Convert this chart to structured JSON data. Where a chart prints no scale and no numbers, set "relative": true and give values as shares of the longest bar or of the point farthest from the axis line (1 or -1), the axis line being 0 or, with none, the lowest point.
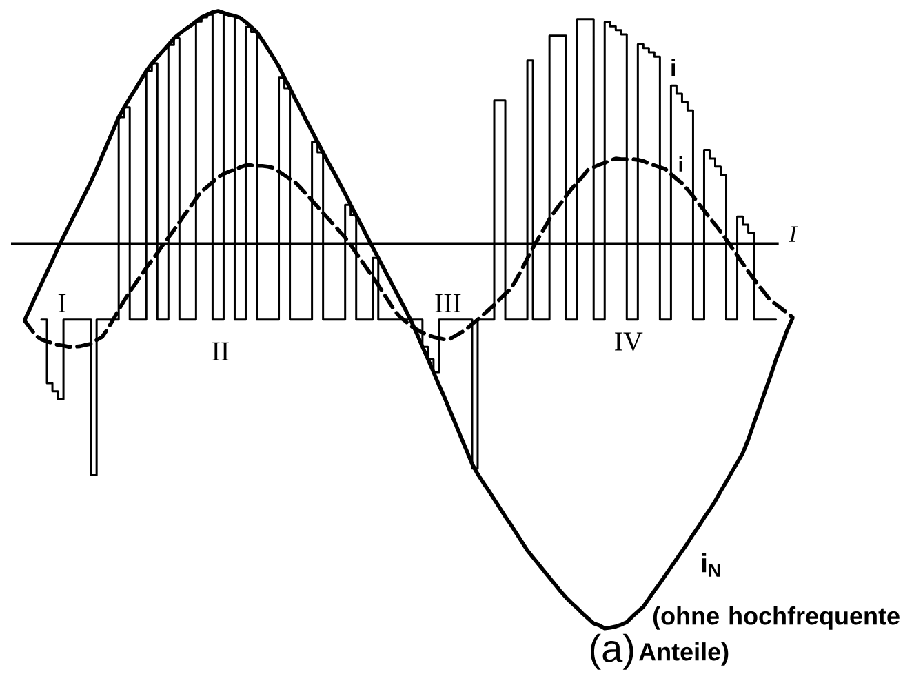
{
  "chart_data": {
    "type": "line",
    "relative": true,
    "marker": "none",
    "categories": [
      null,
      null,
      null,
      null,
      null,
      null,
      null,
      null,
      null,
      null,
      null,
      null,
      null,
      null,
      null,
      null,
      null,
      null,
      null,
      null,
      null,
      null,
      null,
      null,
      null,
      null,
      null,
      null,
      null,
      null,
      null,
      null,
      null,
      null,
      null,
      null,
      null,
      null,
      null,
      null,
      null,
      null,
      null,
      null,
      null,
      null,
      null,
      null,
      null,
      null,
      null,
      null,
      null,
      null,
      null,
      null,
      null,
      null,
      null,
      null,
      null,
      null,
      null,
      null,
      null,
      null,
      null,
      null,
      null,
      null,
      null,
      null,
      null,
      null,
      null,
      null,
      null,
      null,
      null,
      null,
      null,
      null,
      null,
      null,
      null,
      null,
      null,
      null,
      null,
      null,
      null,
      null,
      null,
      null,
      null,
      null,
      null,
      null,
      null,
      null,
      null,
      null,
      null,
      null,
      null,
      null,
      null,
      null,
      null,
      null,
      null,
      null,
      null,
      null,
      null,
      null,
      null,
      null,
      null,
      null,
      null,
      null,
      null,
      null,
      null,
      null,
      null,
      null,
      null,
      null,
      null,
      null,
      null,
      null,
      null,
      null,
      null,
      null,
      null,
      null
    ],
    "series": [
      {
        "name": "i$_{N}$",
        "color": "#000000",
        "line_style": "solid",
        "values": [
          0.5,
          0.519,
          0.539,
          0.558,
          0.577,
          0.596,
          0.616,
          0.634,
          0.652,
          0.67,
          0.688,
          0.706,
          0.724,
          0.744,
          0.765,
          0.786,
          0.807,
          0.828,
          0.844,
          0.859,
          0.873,
          0.888,
          0.903,
          0.915,
          0.925,
          0.935,
          0.945,
          0.956,
          0.963,
          0.97,
          0.976,
          0.983,
          0.99,
          0.994,
          0.998,
          1.0,
          0.997,
          0.994,
          0.992,
          0.989,
          0.982,
          0.974,
          0.966,
          0.953,
          0.939,
          0.925,
          0.91,
          0.892,
          0.875,
          0.857,
          0.84,
          0.822,
          0.805,
          0.788,
          0.771,
          0.754,
          0.738,
          0.721,
          0.704,
          0.686,
          0.669,
          0.652,
          0.634,
          0.617,
          0.6,
          0.583,
          0.566,
          0.549,
          0.532,
          0.515,
          0.497,
          0.477,
          0.456,
          0.436,
          0.415,
          0.394,
          0.374,
          0.352,
          0.331,
          0.309,
          0.288,
          0.266,
          0.25,
          0.236,
          0.223,
          0.209,
          0.195,
          0.181,
          0.168,
          0.154,
          0.14,
          0.126,
          0.115,
          0.104,
          0.093,
          0.082,
          0.071,
          0.06,
          0.05,
          0.041,
          0.033,
          0.024,
          0.016,
          0.008,
          0.005,
          0,
          0.001,
          0.003,
          0.006,
          0.01,
          0.019,
          0.027,
          0.035,
          0.048,
          0.061,
          0.073,
          0.086,
          0.099,
          0.112,
          0.125,
          0.138,
          0.152,
          0.165,
          0.179,
          0.192,
          0.206,
          0.222,
          0.237,
          0.253,
          0.268,
          0.284,
          0.306,
          0.332,
          0.357,
          0.383,
          0.408,
          0.435,
          0.458,
          0.482,
          0.502
        ]
      },
      {
        "name": "i",
        "type": "step",
        "color": "#000000",
        "line_style": "solid",
        "values": [
          null,
          null,
          null,
          0.5,
          0.397,
          0.384,
          0.371,
          0.5,
          0.5,
          0.5,
          0.5,
          0.5,
          0.248,
          0.5,
          0.5,
          0.5,
          0.5,
          0.828,
          0.844,
          0.5,
          0.5,
          0.5,
          0.903,
          0.915,
          0.5,
          0.5,
          0.945,
          0.956,
          0.5,
          0.5,
          0.5,
          0.983,
          0.99,
          0.994,
          0.5,
          0.5,
          0.994,
          0.992,
          0.5,
          0.5,
          0.974,
          0.966,
          0.5,
          0.5,
          0.5,
          0.5,
          0.892,
          0.875,
          0.5,
          0.5,
          0.5,
          0.5,
          0.788,
          0.771,
          0.5,
          0.5,
          0.5,
          0.5,
          0.686,
          0.669,
          0.5,
          0.5,
          0.5,
          0.6,
          0.5,
          0.5,
          0.5,
          0.5,
          0.5,
          0.5,
          0.5,
          0.5,
          0.456,
          0.436,
          0.415,
          0.5,
          0.5,
          0.5,
          0.5,
          0.5,
          0.5,
          0.259,
          0.5,
          0.5,
          0.5,
          0.855,
          0.855,
          0.5,
          0.5,
          0.5,
          0.5,
          0.92,
          0.5,
          0.5,
          0.5,
          0.96,
          0.96,
          0.96,
          0.5,
          0.5,
          0.987,
          0.987,
          0.987,
          0.5,
          0.5,
          0.982,
          0.975,
          0.969,
          0.962,
          0.5,
          0.5,
          0.946,
          0.94,
          0.933,
          0.926,
          0.5,
          0.5,
          0.879,
          0.866,
          0.853,
          0.839,
          0.5,
          0.5,
          0.775,
          0.761,
          0.748,
          0.734,
          0.5,
          0.5,
          0.667,
          0.654,
          0.641,
          0.5,
          0.5,
          0.5,
          0.5,
          0.5,
          null,
          null,
          null
        ]
      },
      {
        "color": "#000000",
        "line_style": "dashed",
        "values": [
          0.498,
          0.486,
          0.474,
          0.468,
          0.465,
          0.462,
          0.459,
          0.458,
          0.456,
          0.456,
          0.457,
          0.459,
          0.461,
          0.467,
          0.472,
          0.485,
          0.5,
          0.516,
          0.531,
          0.545,
          0.558,
          0.571,
          0.584,
          0.596,
          0.608,
          0.621,
          0.633,
          0.645,
          0.658,
          0.671,
          0.683,
          0.696,
          0.708,
          0.715,
          0.723,
          0.731,
          0.736,
          0.74,
          0.743,
          0.747,
          0.75,
          0.75,
          0.749,
          0.749,
          0.748,
          0.746,
          0.74,
          0.734,
          0.728,
          0.722,
          0.713,
          0.703,
          0.693,
          0.683,
          0.673,
          0.663,
          0.653,
          0.643,
          0.633,
          0.621,
          0.608,
          0.595,
          0.582,
          0.569,
          0.556,
          0.542,
          0.528,
          0.514,
          0.504,
          0.497,
          0.489,
          0.484,
          0.479,
          0.475,
          0.472,
          0.47,
          0.468,
          0.469,
          0.474,
          0.479,
          0.485,
          0.493,
          0.5,
          0.508,
          0.516,
          0.524,
          0.533,
          0.542,
          0.55,
          0.565,
          0.582,
          0.599,
          0.616,
          0.632,
          0.647,
          0.663,
          0.676,
          0.688,
          0.7,
          0.712,
          0.722,
          0.732,
          0.743,
          0.747,
          0.751,
          0.754,
          0.758,
          0.761,
          0.76,
          0.76,
          0.76,
          0.759,
          0.757,
          0.753,
          0.75,
          0.747,
          0.744,
          0.736,
          0.728,
          0.721,
          0.711,
          0.7,
          0.688,
          0.677,
          0.665,
          0.654,
          0.642,
          0.63,
          0.617,
          0.604,
          0.591,
          0.578,
          0.566,
          0.554,
          0.543,
          0.531,
          0.525,
          0.518,
          0.511,
          0.504
        ]
      }
    ],
    "ref_lines": [
      {
        "axis": "y",
        "value": 0.623,
        "label": "I",
        "color": "#000000"
      }
    ],
    "annotations": [
      "I",
      "II",
      "III",
      "IV",
      "(ohne hochfrequente Anteile)",
      "(a)",
      "i"
    ]
  }
}
